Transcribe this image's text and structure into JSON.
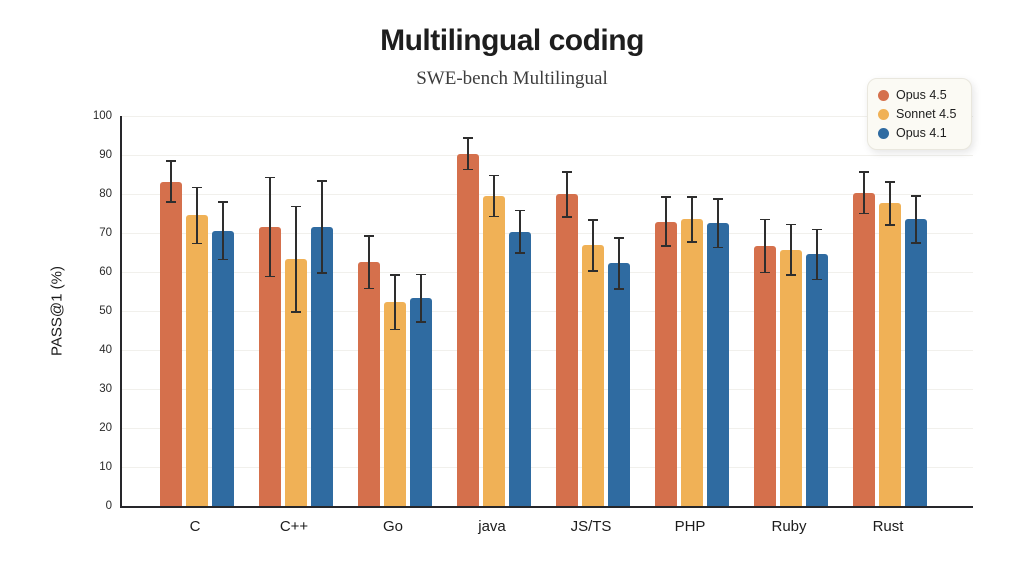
{
  "chart_data": {
    "type": "bar",
    "title": "Multilingual coding",
    "subtitle": "SWE-bench Multilingual",
    "ylabel": "PASS@1 (%)",
    "ylim": [
      0,
      100
    ],
    "yticks": [
      0,
      10,
      20,
      30,
      40,
      50,
      60,
      70,
      80,
      90,
      100
    ],
    "grid": true,
    "error_bars": true,
    "legend_position": "top-right",
    "categories": [
      "C",
      "C++",
      "Go",
      "java",
      "JS/TS",
      "PHP",
      "Ruby",
      "Rust"
    ],
    "series": [
      {
        "name": "Opus 4.5",
        "color": "#D5704C",
        "values": [
          83.2,
          71.5,
          62.5,
          90.3,
          79.9,
          72.9,
          66.7,
          80.3
        ],
        "errors": [
          5.5,
          12.9,
          6.9,
          4.2,
          6.0,
          6.5,
          7.0,
          5.5
        ]
      },
      {
        "name": "Sonnet 4.5",
        "color": "#F0B156",
        "values": [
          74.5,
          63.3,
          52.3,
          79.5,
          66.8,
          73.5,
          65.7,
          77.6
        ],
        "errors": [
          7.4,
          13.7,
          7.2,
          5.5,
          6.7,
          6.0,
          6.7,
          5.7
        ]
      },
      {
        "name": "Opus 4.1",
        "color": "#2F6BA1",
        "values": [
          70.6,
          71.5,
          53.3,
          70.3,
          62.2,
          72.5,
          64.5,
          73.5
        ],
        "errors": [
          7.6,
          12.0,
          6.3,
          5.7,
          6.7,
          6.4,
          6.6,
          6.2
        ]
      }
    ],
    "colors": {
      "axis": "#26262a",
      "error_bar": "#2e2e2e",
      "grid": "#f1f0ec",
      "background": "#ffffff"
    }
  }
}
